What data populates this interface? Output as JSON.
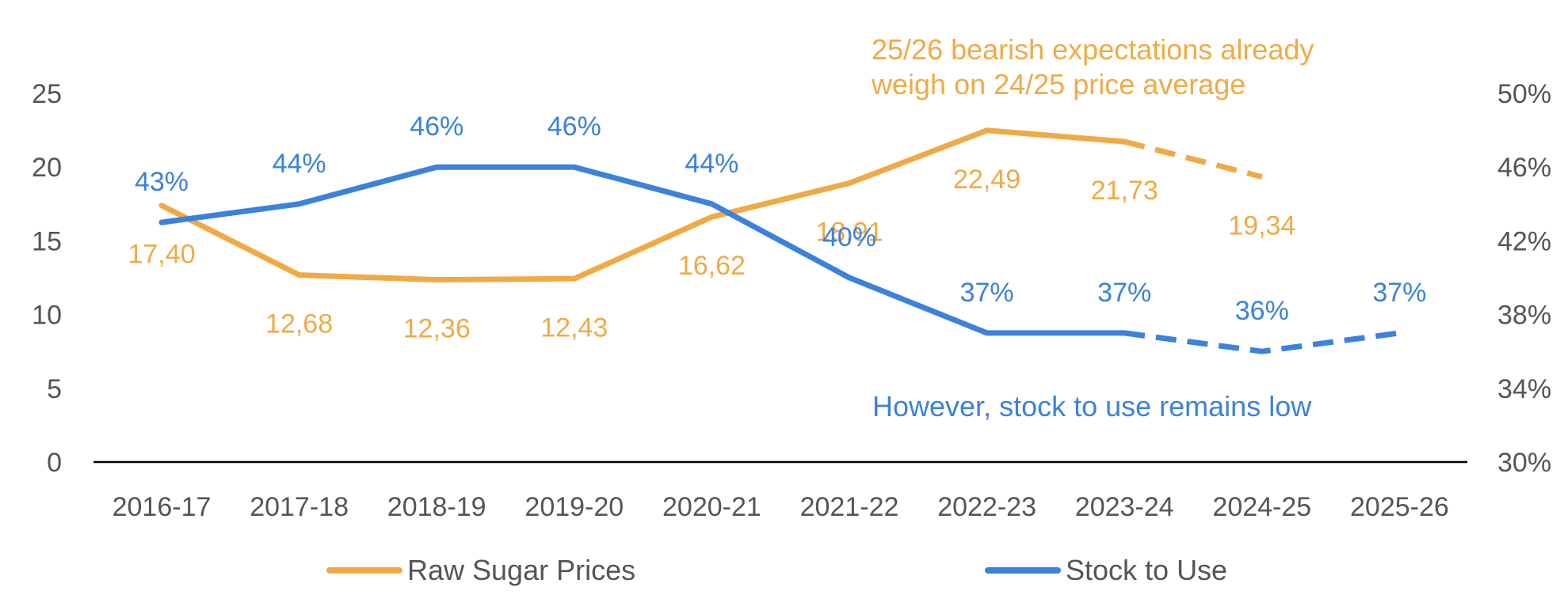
{
  "colors": {
    "price": "#F0AA45",
    "stock": "#3B82DC",
    "axis": "#000000",
    "text": "#555555"
  },
  "chart_data": {
    "type": "line",
    "categories": [
      "2016-17",
      "2017-18",
      "2018-19",
      "2019-20",
      "2020-21",
      "2021-22",
      "2022-23",
      "2023-24",
      "2024-25",
      "2025-26"
    ],
    "series": [
      {
        "name": "Raw Sugar Prices",
        "axis": "left",
        "values": [
          17.4,
          12.68,
          12.36,
          12.43,
          16.62,
          18.91,
          22.49,
          21.73,
          19.34,
          null
        ],
        "labels": [
          "17,40",
          "12,68",
          "12,36",
          "12,43",
          "16,62",
          "18,91",
          "22,49",
          "21,73",
          "19,34",
          ""
        ],
        "dashed_from_index": 7
      },
      {
        "name": "Stock to Use",
        "axis": "right",
        "values": [
          43,
          44,
          46,
          46,
          44,
          40,
          37,
          37,
          36,
          37
        ],
        "labels": [
          "43%",
          "44%",
          "46%",
          "46%",
          "44%",
          "40%",
          "37%",
          "37%",
          "36%",
          "37%"
        ],
        "dashed_from_index": 7
      }
    ],
    "y_left": {
      "ticks": [
        "0",
        "5",
        "10",
        "15",
        "20",
        "25"
      ],
      "ylim": [
        0,
        25
      ]
    },
    "y_right": {
      "ticks": [
        "30%",
        "34%",
        "38%",
        "42%",
        "46%",
        "50%"
      ],
      "ylim": [
        30,
        50
      ]
    },
    "annotations": [
      {
        "lines": [
          "25/26 bearish expectations already",
          "weigh on 24/25 price average"
        ],
        "series": "Raw Sugar Prices"
      },
      {
        "lines": [
          "However, stock to use remains low"
        ],
        "series": "Stock to Use"
      }
    ],
    "legend": {
      "placement": "bottom",
      "items": [
        "Raw Sugar Prices",
        "Stock to Use"
      ]
    },
    "grid": false
  }
}
